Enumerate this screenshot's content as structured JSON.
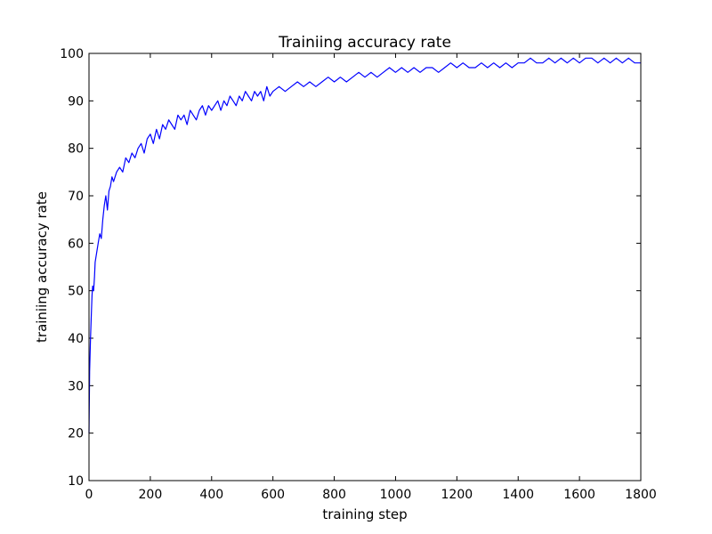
{
  "chart_data": {
    "type": "line",
    "title": "Trainiing accuracy rate",
    "xlabel": "training step",
    "ylabel": "trainiing accuracy rate",
    "xlim": [
      0,
      1800
    ],
    "ylim": [
      10,
      100
    ],
    "xticks": [
      0,
      200,
      400,
      600,
      800,
      1000,
      1200,
      1400,
      1600,
      1800
    ],
    "yticks": [
      10,
      20,
      30,
      40,
      50,
      60,
      70,
      80,
      90,
      100
    ],
    "grid": false,
    "series": [
      {
        "color": "#0000ff",
        "x": [
          0,
          2,
          5,
          8,
          10,
          12,
          15,
          18,
          20,
          25,
          30,
          35,
          40,
          45,
          50,
          55,
          60,
          65,
          70,
          75,
          80,
          90,
          100,
          110,
          120,
          130,
          140,
          150,
          160,
          170,
          180,
          190,
          200,
          210,
          220,
          230,
          240,
          250,
          260,
          270,
          280,
          290,
          300,
          310,
          320,
          330,
          340,
          350,
          360,
          370,
          380,
          390,
          400,
          410,
          420,
          430,
          440,
          450,
          460,
          470,
          480,
          490,
          500,
          510,
          520,
          530,
          540,
          550,
          560,
          570,
          580,
          590,
          600,
          620,
          640,
          660,
          680,
          700,
          720,
          740,
          760,
          780,
          800,
          820,
          840,
          860,
          880,
          900,
          920,
          940,
          960,
          980,
          1000,
          1020,
          1040,
          1060,
          1080,
          1100,
          1120,
          1140,
          1160,
          1180,
          1200,
          1220,
          1240,
          1260,
          1280,
          1300,
          1320,
          1340,
          1360,
          1380,
          1400,
          1420,
          1440,
          1460,
          1480,
          1500,
          1520,
          1540,
          1560,
          1580,
          1600,
          1620,
          1640,
          1660,
          1680,
          1700,
          1720,
          1740,
          1760,
          1780,
          1800
        ],
        "y": [
          20,
          33,
          40,
          46,
          49,
          51,
          50,
          53,
          56,
          58,
          60,
          62,
          61,
          65,
          68,
          70,
          67,
          71,
          72,
          74,
          73,
          75,
          76,
          75,
          78,
          77,
          79,
          78,
          80,
          81,
          79,
          82,
          83,
          81,
          84,
          82,
          85,
          84,
          86,
          85,
          84,
          87,
          86,
          87,
          85,
          88,
          87,
          86,
          88,
          89,
          87,
          89,
          88,
          89,
          90,
          88,
          90,
          89,
          91,
          90,
          89,
          91,
          90,
          92,
          91,
          90,
          92,
          91,
          92,
          90,
          93,
          91,
          92,
          93,
          92,
          93,
          94,
          93,
          94,
          93,
          94,
          95,
          94,
          95,
          94,
          95,
          96,
          95,
          96,
          95,
          96,
          97,
          96,
          97,
          96,
          97,
          96,
          97,
          97,
          96,
          97,
          98,
          97,
          98,
          97,
          97,
          98,
          97,
          98,
          97,
          98,
          97,
          98,
          98,
          99,
          98,
          98,
          99,
          98,
          99,
          98,
          99,
          98,
          99,
          99,
          98,
          99,
          98,
          99,
          98,
          99,
          98,
          98
        ]
      }
    ]
  }
}
